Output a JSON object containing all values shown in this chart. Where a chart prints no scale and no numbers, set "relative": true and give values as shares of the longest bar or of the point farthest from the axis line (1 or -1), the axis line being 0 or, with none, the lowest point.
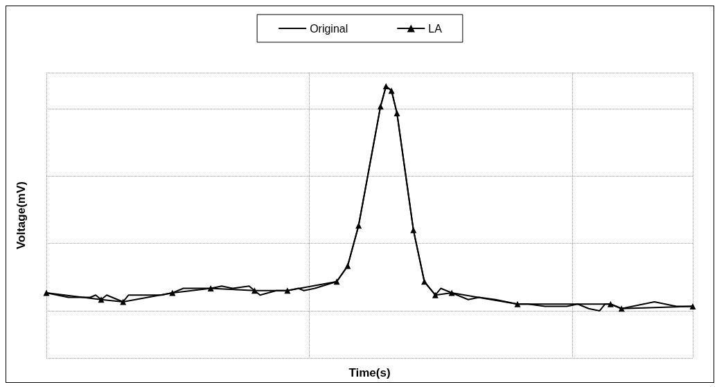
{
  "chart_data": {
    "type": "line",
    "relative": true,
    "xlabel": "Time(s)",
    "ylabel": "Voltage(mV)",
    "grid": true,
    "legend": "top",
    "categories": [
      null,
      null,
      null,
      null,
      null,
      null,
      null,
      null,
      null,
      null,
      null,
      null,
      null,
      null,
      null,
      null,
      null,
      null,
      null,
      null,
      null,
      null,
      null,
      null,
      null,
      null,
      null,
      null,
      null,
      null,
      null,
      null,
      null,
      null,
      null,
      null,
      null,
      null,
      null,
      null,
      null,
      null,
      null,
      null,
      null,
      null,
      null,
      null,
      null,
      null,
      null,
      null,
      null,
      null,
      null,
      null,
      null,
      null,
      null,
      null,
      null,
      null,
      null,
      null,
      null,
      null,
      null,
      null,
      null,
      null,
      null,
      null,
      null,
      null,
      null,
      null,
      null,
      null,
      null,
      null,
      null,
      null,
      null,
      null,
      null,
      null,
      null,
      null,
      null,
      null,
      null,
      null,
      null,
      null,
      null,
      null,
      null,
      null,
      null,
      null,
      null,
      null,
      null,
      null,
      null,
      null,
      null,
      null,
      null,
      null,
      null,
      null,
      null,
      null,
      null,
      null,
      null,
      null,
      null
    ],
    "series": [
      {
        "name": "Original",
        "color": "#000000",
        "marker": "none",
        "values": [
          0.08,
          null,
          null,
          null,
          0.06,
          null,
          null,
          null,
          0.06,
          0.07,
          0.05,
          0.07,
          null,
          null,
          0.04,
          0.07,
          null,
          null,
          0.07,
          null,
          null,
          0.07,
          null,
          0.08,
          null,
          0.1,
          null,
          null,
          0.1,
          null,
          0.1,
          null,
          0.11,
          null,
          0.1,
          null,
          null,
          0.11,
          0.09,
          0.07,
          null,
          null,
          0.09,
          null,
          0.09,
          null,
          0.1,
          0.09,
          null,
          0.1,
          null,
          null,
          null,
          0.13,
          null,
          0.2,
          null,
          0.38,
          null,
          null,
          null,
          0.91,
          1,
          0.98,
          0.88,
          null,
          null,
          0.36,
          null,
          0.13,
          null,
          0.07,
          0.1,
          null,
          0.08,
          null,
          null,
          0.05,
          null,
          0.06,
          null,
          null,
          0.05,
          null,
          null,
          null,
          0.03,
          null,
          0.03,
          null,
          null,
          0.02,
          null,
          null,
          null,
          0.02,
          null,
          0.03,
          null,
          0.01,
          null,
          0,
          0.03,
          0.03,
          null,
          0.01,
          null,
          0.02,
          null,
          0.03,
          null,
          0.04,
          null,
          0.03,
          null,
          0.02,
          null,
          null,
          0.02
        ]
      },
      {
        "name": "LA",
        "color": "#000000",
        "marker": "triangle",
        "values": [
          0.08,
          null,
          null,
          null,
          null,
          null,
          null,
          null,
          null,
          null,
          0.05,
          null,
          null,
          null,
          0.04,
          null,
          null,
          null,
          null,
          null,
          null,
          null,
          null,
          0.08,
          null,
          null,
          null,
          null,
          null,
          null,
          0.1,
          null,
          null,
          null,
          null,
          null,
          null,
          null,
          0.09,
          null,
          null,
          null,
          null,
          null,
          0.09,
          null,
          null,
          null,
          null,
          null,
          null,
          null,
          null,
          0.13,
          null,
          0.2,
          null,
          0.38,
          null,
          null,
          null,
          0.91,
          1,
          0.98,
          0.88,
          null,
          null,
          0.36,
          null,
          0.13,
          null,
          0.07,
          null,
          null,
          0.08,
          null,
          null,
          null,
          null,
          null,
          null,
          null,
          null,
          null,
          null,
          null,
          0.03,
          null,
          null,
          null,
          null,
          null,
          null,
          null,
          null,
          null,
          null,
          null,
          null,
          null,
          null,
          null,
          null,
          0.03,
          null,
          0.01,
          null,
          null,
          null,
          null,
          null,
          null,
          null,
          null,
          null,
          null,
          null,
          null,
          0.02
        ]
      }
    ]
  }
}
